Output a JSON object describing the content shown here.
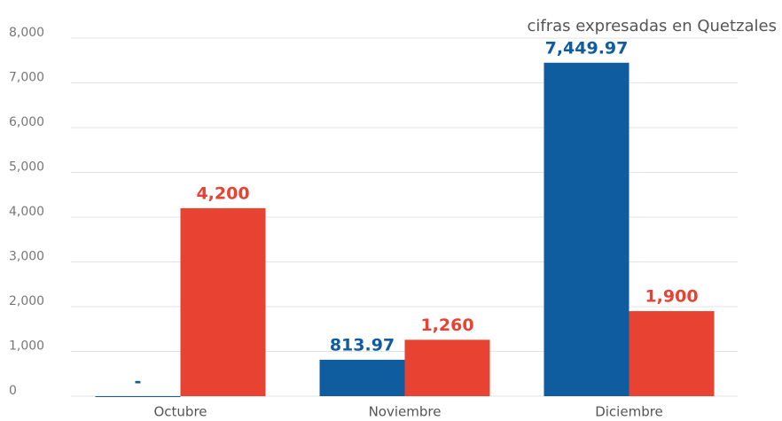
{
  "chart_data": {
    "type": "bar",
    "subtitle": "cifras expresadas en Quetzales",
    "categories": [
      "Octubre",
      "Noviembre",
      "Diciembre"
    ],
    "series": [
      {
        "color": "#0f5c9e",
        "values": [
          0,
          813.97,
          7449.97
        ],
        "value_labels": [
          "-",
          "813.97",
          "7,449.97"
        ]
      },
      {
        "color": "#e84232",
        "values": [
          4200,
          1260,
          1900
        ],
        "value_labels": [
          "4,200",
          "1,260",
          "1,900"
        ]
      }
    ],
    "ylim": [
      0,
      8000
    ],
    "yticks": [
      0,
      {
        "value": 1000,
        "label": "1,000"
      },
      {
        "value": 2000,
        "label": "2,000"
      },
      {
        "value": 3000,
        "label": "3,000"
      },
      {
        "value": 4000,
        "label": "4,000"
      },
      {
        "value": 5000,
        "label": "5,000"
      },
      {
        "value": 6000,
        "label": "6,000"
      },
      {
        "value": 7000,
        "label": "7,000"
      },
      {
        "value": 8000,
        "label": "8,000"
      }
    ],
    "grid": true
  }
}
